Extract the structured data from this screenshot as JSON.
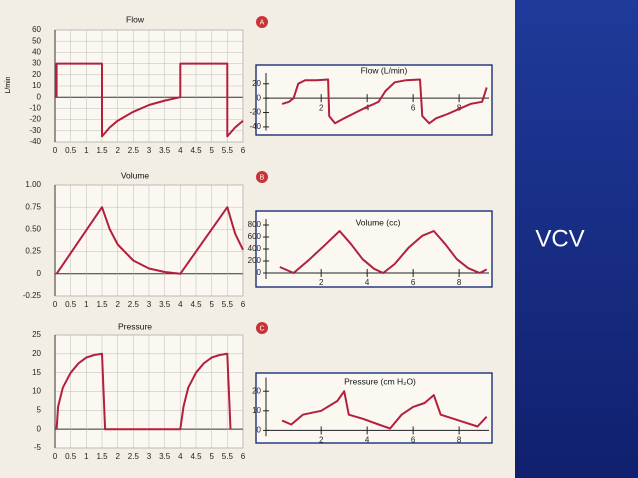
{
  "chart_data": [
    {
      "type": "line",
      "panel": "A",
      "title": "Flow",
      "ylabel": "L/min",
      "grid": true,
      "color": "#b3203c",
      "x": [
        0.05,
        0.05,
        1.5,
        1.5,
        1.75,
        2,
        2.5,
        3,
        3.5,
        4,
        4,
        5.5,
        5.5,
        5.75,
        6
      ],
      "values": [
        0,
        30,
        30,
        -35,
        -27,
        -21,
        -13,
        -7,
        -3,
        0,
        30,
        30,
        -35,
        -27,
        -21
      ],
      "xlim": [
        0,
        6
      ],
      "ylim": [
        -40,
        60
      ],
      "xticks": [
        0,
        0.5,
        1,
        1.5,
        2,
        2.5,
        3,
        3.5,
        4,
        4.5,
        5,
        5.5,
        6
      ],
      "yticks": [
        -40,
        -30,
        -20,
        -10,
        0,
        10,
        20,
        30,
        40,
        50,
        60
      ]
    },
    {
      "type": "line",
      "panel": "B",
      "title": "Volume",
      "grid": true,
      "color": "#b3203c",
      "x": [
        0.05,
        1.5,
        1.75,
        2,
        2.5,
        3,
        3.5,
        4,
        5.5,
        5.75,
        6
      ],
      "values": [
        0,
        0.75,
        0.5,
        0.33,
        0.15,
        0.06,
        0.02,
        0,
        0.75,
        0.45,
        0.27
      ],
      "xlim": [
        0,
        6
      ],
      "ylim": [
        -0.25,
        1
      ],
      "xticks": [
        0,
        0.5,
        1,
        1.5,
        2,
        2.5,
        3,
        3.5,
        4,
        4.5,
        5,
        5.5,
        6
      ],
      "yticks": [
        -0.25,
        0,
        0.25,
        {
          "value": 0.5,
          "label": "0.50"
        },
        0.75,
        {
          "value": 1,
          "label": "1.00"
        }
      ]
    },
    {
      "type": "line",
      "panel": "C",
      "title": "Pressure",
      "grid": true,
      "color": "#b3203c",
      "x": [
        0.05,
        0.1,
        0.25,
        0.5,
        0.75,
        1,
        1.25,
        1.5,
        1.6,
        4,
        4.1,
        4.25,
        4.5,
        4.75,
        5,
        5.25,
        5.5,
        5.6
      ],
      "values": [
        0,
        6,
        11,
        15,
        17.5,
        19,
        19.7,
        20,
        0,
        0,
        6,
        11,
        15,
        17.5,
        19,
        19.7,
        20,
        0
      ],
      "xlim": [
        0,
        6
      ],
      "ylim": [
        -5,
        25
      ],
      "xticks": [
        0,
        0.5,
        1,
        1.5,
        2,
        2.5,
        3,
        3.5,
        4,
        4.5,
        5,
        5.5,
        6
      ],
      "yticks": [
        -5,
        0,
        5,
        10,
        15,
        20,
        25
      ]
    },
    {
      "type": "line",
      "title": "Flow (L/min)",
      "grid": false,
      "color": "#b3203c",
      "x": [
        0.3,
        0.6,
        0.8,
        1.0,
        1.3,
        1.8,
        2.3,
        2.35,
        2.6,
        3,
        3.5,
        4,
        4.3,
        4.5,
        4.8,
        5.2,
        5.7,
        6.3,
        6.4,
        6.7,
        7,
        7.5,
        8,
        8.5,
        9,
        9.2
      ],
      "values": [
        -8,
        -5,
        0,
        20,
        25,
        25,
        26,
        -25,
        -35,
        -28,
        -20,
        -12,
        -8,
        -5,
        10,
        22,
        25,
        26,
        -25,
        -35,
        -28,
        -22,
        -15,
        -8,
        -5,
        15
      ],
      "xlim": [
        -0.4,
        9.3
      ],
      "ylim": [
        -45,
        35
      ],
      "xticks": [
        2,
        4,
        6,
        8
      ],
      "yticks": [
        -40,
        -20,
        0,
        20
      ]
    },
    {
      "type": "line",
      "title": "Volume (cc)",
      "grid": false,
      "color": "#b3203c",
      "x": [
        0.2,
        0.8,
        1.5,
        2.2,
        2.8,
        3.3,
        3.8,
        4.3,
        4.7,
        5.2,
        5.8,
        6.4,
        6.9,
        7.4,
        7.9,
        8.4,
        8.9,
        9.2
      ],
      "values": [
        100,
        0,
        230,
        480,
        700,
        480,
        230,
        70,
        0,
        150,
        420,
        620,
        700,
        480,
        230,
        80,
        0,
        60
      ],
      "xlim": [
        -0.4,
        9.3
      ],
      "ylim": [
        -100,
        900
      ],
      "xticks": [
        2,
        4,
        6,
        8
      ],
      "yticks": [
        0,
        200,
        400,
        600,
        800
      ]
    },
    {
      "type": "line",
      "title": "Pressure (cm H₂O)",
      "grid": false,
      "color": "#b3203c",
      "x": [
        0.3,
        0.7,
        1.2,
        2.0,
        2.7,
        3.0,
        3.2,
        3.8,
        4.5,
        5.0,
        5.5,
        6.0,
        6.5,
        6.9,
        7.2,
        8.0,
        8.8,
        9.2
      ],
      "values": [
        5,
        3,
        8,
        10,
        15,
        20,
        8,
        6,
        3,
        1,
        8,
        12,
        14,
        18,
        8,
        5,
        2,
        7
      ],
      "xlim": [
        -0.4,
        9.3
      ],
      "ylim": [
        -3,
        27
      ],
      "xticks": [
        2,
        4,
        6,
        8
      ],
      "yticks": [
        0,
        10,
        20
      ]
    }
  ],
  "slide": {
    "label": "VCV"
  }
}
